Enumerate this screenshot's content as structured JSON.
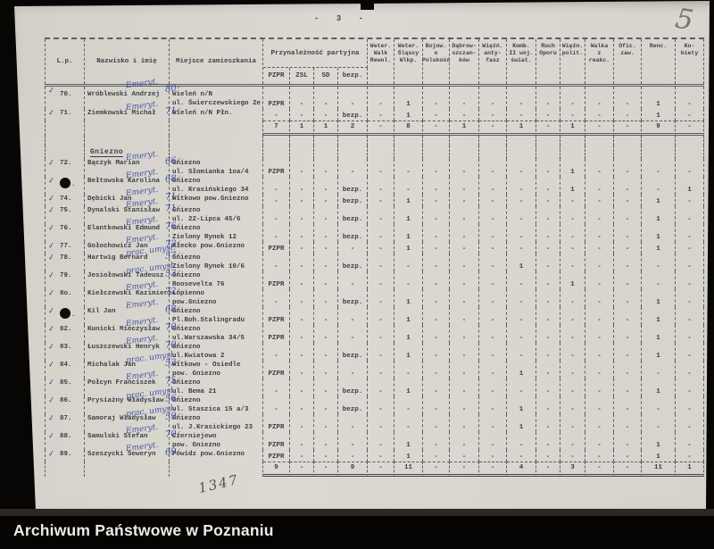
{
  "page": {
    "number_label": "- 3 -",
    "pencil_mark": "5",
    "bottom_note": "1347"
  },
  "footer": {
    "title": "Archiwum Państwowe w Poznaniu"
  },
  "colors": {
    "paper": "#d9d6cf",
    "typed_ink": "#3e3e47",
    "handwriting_ink": "#3340a0",
    "footer_bg": "#050403",
    "footer_text": "#edebe7"
  },
  "table": {
    "headers": {
      "lp": "L.p.",
      "name": "Nazwisko i imię",
      "residence": "Miejsce zamieszkania",
      "party_group": "Przynależność partyjna",
      "party_cols": [
        "PZPR",
        "ZSL",
        "SD",
        "bezp."
      ],
      "category_cols": [
        [
          "Weter.",
          "Walk",
          "Rewol."
        ],
        [
          "Weter.",
          "Śląscy",
          "Wlkp."
        ],
        [
          "Bojow.",
          "o",
          "Polskość"
        ],
        [
          "Dąbrow-",
          "szczan-",
          "ków"
        ],
        [
          "Więźń.",
          "anty-",
          "fasz"
        ],
        [
          "Komb.",
          "II woj.",
          "świat."
        ],
        [
          "Ruch",
          "Oporu"
        ],
        [
          "Więźn.",
          "polit."
        ],
        [
          "Walka",
          "z",
          "reakc."
        ],
        [
          "Ofic.",
          "zaw."
        ],
        [
          "Renc."
        ],
        [
          "Ko-",
          "biety"
        ]
      ]
    },
    "section1": {
      "rows": [
        {
          "num": "70.",
          "check": true,
          "hole": false,
          "name": "Wróblewski Andrzej",
          "annotation": "Emeryt.",
          "age": "80",
          "address": [
            "Wieleń n/N",
            "ul. Świerczewskiego 2e"
          ],
          "values": [
            "PZPR",
            "-",
            "-",
            "-",
            "-",
            "1",
            "-",
            "-",
            "-",
            "-",
            "-",
            "-",
            "-",
            "-",
            "1",
            "-"
          ]
        },
        {
          "num": "71.",
          "check": true,
          "hole": false,
          "name": "Ziemkowski Michał",
          "annotation": "Emeryt.",
          "age": "71",
          "address": [
            "Wieleń n/N Płn."
          ],
          "values": [
            "-",
            "-",
            "-",
            "bezp.",
            "-",
            "1",
            "-",
            "-",
            "-",
            "-",
            "-",
            "-",
            "-",
            "-",
            "1",
            "-"
          ]
        }
      ],
      "subtotal": [
        "7",
        "1",
        "1",
        "2",
        "-",
        "8",
        "-",
        "1",
        "-",
        "1",
        "-",
        "1",
        "-",
        "-",
        "9",
        "-"
      ]
    },
    "section2": {
      "title": "Gniezno",
      "rows": [
        {
          "num": "72.",
          "check": true,
          "hole": false,
          "name": "Bączyk Marian",
          "annotation": "Emeryt.",
          "age": "66",
          "address": [
            "Gniezno",
            "ul. Słomianka 1oa/4"
          ],
          "values": [
            "PZPR",
            "-",
            "-",
            "-",
            "-",
            "-",
            "-",
            "-",
            "-",
            "-",
            "-",
            "1",
            "-",
            "-",
            "-",
            "-"
          ]
        },
        {
          "num": ".",
          "check": true,
          "hole": true,
          "name": "Bełtowska Karolina",
          "annotation": "Emeryt.",
          "age": "68",
          "address": [
            "Gniezno",
            "ul. Krasińskiego 34"
          ],
          "values": [
            "-",
            "-",
            "-",
            "bezp.",
            "-",
            "-",
            "-",
            "-",
            "-",
            "-",
            "-",
            "1",
            "-",
            "-",
            "-",
            "1"
          ]
        },
        {
          "num": "74.",
          "check": true,
          "hole": false,
          "name": "Dębicki Jan",
          "annotation": "Emeryt.",
          "age": "71",
          "address": [
            "Witkowo pow.Gniezno"
          ],
          "values": [
            "-",
            "-",
            "-",
            "bezp.",
            "-",
            "1",
            "-",
            "-",
            "-",
            "-",
            "-",
            "-",
            "-",
            "-",
            "1",
            "-"
          ]
        },
        {
          "num": "75.",
          "check": true,
          "hole": false,
          "name": "Dynalski Stanisław",
          "annotation": "Emeryt.",
          "age": "71",
          "address": [
            "Gniezno",
            "ul. 22-Lipca 45/6"
          ],
          "values": [
            "-",
            "-",
            "-",
            "bezp.",
            "-",
            "1",
            "-",
            "-",
            "-",
            "-",
            "-",
            "-",
            "-",
            "-",
            "1",
            "-"
          ]
        },
        {
          "num": "76.",
          "check": true,
          "hole": false,
          "name": "Elantkowski Edmund",
          "annotation": "Emeryt.",
          "age": "76",
          "address": [
            "Gniezno",
            "Zielony Rynek 12"
          ],
          "values": [
            "-",
            "-",
            "-",
            "bezp.",
            "-",
            "1",
            "-",
            "-",
            "-",
            "-",
            "-",
            "-",
            "-",
            "-",
            "1",
            "-"
          ]
        },
        {
          "num": "77.",
          "check": true,
          "hole": false,
          "name": "Gołochowicz Jan",
          "annotation": "Emeryt.",
          "age": "73",
          "address": [
            "Kłecko pow.Gniezno"
          ],
          "values": [
            "PZPR",
            "-",
            "-",
            "-",
            "-",
            "1",
            "-",
            "-",
            "-",
            "-",
            "-",
            "-",
            "-",
            "-",
            "1",
            "-"
          ]
        },
        {
          "num": "78.",
          "check": true,
          "hole": false,
          "name": "Hartwig Bernard",
          "annotation": "prac. umysł.",
          "age": "57",
          "address": [
            "Gniezno",
            "Zielony Rynek 10/6"
          ],
          "values": [
            "-",
            "-",
            "-",
            "bezp.",
            "-",
            "-",
            "-",
            "-",
            "-",
            "1",
            "-",
            "-",
            "-",
            "-",
            "-",
            "-"
          ]
        },
        {
          "num": "79.",
          "check": true,
          "hole": false,
          "name": "Jesiołowski Tadeusz",
          "annotation": "prac. umysł.",
          "age": "53",
          "address": [
            "Gniezno",
            "Roosevelta 76"
          ],
          "values": [
            "PZPR",
            "-",
            "-",
            "-",
            "-",
            "-",
            "-",
            "-",
            "-",
            "-",
            "-",
            "1",
            "-",
            "-",
            "-",
            "-"
          ]
        },
        {
          "num": "8o.",
          "check": true,
          "hole": false,
          "name": "Kiełczewski Kazimierz",
          "annotation": "Emeryt.",
          "age": "72",
          "address": [
            "Łopienno",
            "pow.Gniezno"
          ],
          "values": [
            "-",
            "-",
            "-",
            "bezp.",
            "-",
            "1",
            "-",
            "-",
            "-",
            "-",
            "-",
            "-",
            "-",
            "-",
            "1",
            "-"
          ]
        },
        {
          "num": ".",
          "check": true,
          "hole": true,
          "name": "Kil Jan",
          "annotation": "Emeryt.",
          "age": "68",
          "address": [
            "Gniezno",
            "Pl.Boh.Stalingradu"
          ],
          "values": [
            "PZPR",
            "-",
            "-",
            "-",
            "-",
            "1",
            "-",
            "-",
            "-",
            "-",
            "-",
            "-",
            "-",
            "-",
            "1",
            "-"
          ]
        },
        {
          "num": "82.",
          "check": true,
          "hole": false,
          "name": "Kunicki Mieczysław",
          "annotation": "Emeryt.",
          "age": "70",
          "address": [
            "Gniezno",
            "ul.Warszawska 34/5"
          ],
          "values": [
            "PZPR",
            "-",
            "-",
            "-",
            "-",
            "1",
            "-",
            "-",
            "-",
            "-",
            "-",
            "-",
            "-",
            "-",
            "1",
            "-"
          ]
        },
        {
          "num": "83.",
          "check": true,
          "hole": false,
          "name": "Łuszczewski Henryk",
          "annotation": "Emeryt.",
          "age": "70",
          "address": [
            "Gniezno",
            "ul.Kwiatowa 2"
          ],
          "values": [
            "-",
            "-",
            "-",
            "bezp.",
            "-",
            "1",
            "-",
            "-",
            "-",
            "-",
            "-",
            "-",
            "-",
            "-",
            "1",
            "-"
          ]
        },
        {
          "num": "84.",
          "check": true,
          "hole": false,
          "name": "Michalak Jan",
          "annotation": "prac. umysł.",
          "age": "52",
          "address": [
            "Witkowo - Osiedle",
            "pow. Gniezno"
          ],
          "values": [
            "PZPR",
            "-",
            "-",
            "-",
            "-",
            "-",
            "-",
            "-",
            "-",
            "1",
            "-",
            "-",
            "-",
            "-",
            "-",
            "-"
          ]
        },
        {
          "num": "85.",
          "check": true,
          "hole": false,
          "name": "Połcyn Franciszek",
          "annotation": "Emeryt.",
          "age": "75",
          "address": [
            "Gniezno",
            "ul. Bema 21"
          ],
          "values": [
            "-",
            "-",
            "-",
            "bezp.",
            "-",
            "1",
            "-",
            "-",
            "-",
            "-",
            "-",
            "-",
            "-",
            "-",
            "1",
            "-"
          ]
        },
        {
          "num": "86.",
          "check": true,
          "hole": false,
          "name": "Prysiażny Władysław",
          "annotation": "prac. umysł.",
          "age": "56",
          "address": [
            "Gniezno",
            "ul. Staszica 15 a/3"
          ],
          "values": [
            "-",
            "-",
            "-",
            "bezp.",
            "-",
            "-",
            "-",
            "-",
            "-",
            "1",
            "-",
            "-",
            "-",
            "-",
            "-",
            "-"
          ]
        },
        {
          "num": "87.",
          "check": true,
          "hole": false,
          "name": "Samoraj Władysław",
          "annotation": "prac. umysł.",
          "age": "59",
          "address": [
            "Gniezno",
            "ul. J.Krasickiego 23"
          ],
          "values": [
            "PZPR",
            "-",
            "-",
            "-",
            "-",
            "-",
            "-",
            "-",
            "-",
            "1",
            "-",
            "-",
            "-",
            "-",
            "-",
            "-"
          ]
        },
        {
          "num": "88.",
          "check": true,
          "hole": false,
          "name": "Samulski Stefan",
          "annotation": "Emeryt.",
          "age": "70",
          "address": [
            "Czerniejewo",
            "pow. Gniezno"
          ],
          "values": [
            "PZPR",
            "-",
            "-",
            "-",
            "-",
            "1",
            "-",
            "-",
            "-",
            "-",
            "-",
            "-",
            "-",
            "-",
            "1",
            "-"
          ]
        },
        {
          "num": "89.",
          "check": true,
          "hole": false,
          "name": "Szeszycki Seweryn",
          "annotation": "Emeryt.",
          "age": "69",
          "address": [
            "Powidz pow.Gniezno"
          ],
          "values": [
            "PZPR",
            "-",
            "-",
            "-",
            "-",
            "1",
            "-",
            "-",
            "-",
            "-",
            "-",
            "-",
            "-",
            "-",
            "1",
            "-"
          ]
        }
      ],
      "subtotal": [
        "9",
        "-",
        "-",
        "9",
        "-",
        "11",
        "-",
        "-",
        "-",
        "4",
        "-",
        "3",
        "-",
        "-",
        "11",
        "1"
      ]
    }
  }
}
